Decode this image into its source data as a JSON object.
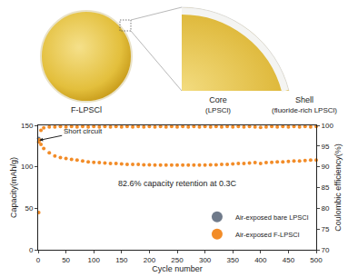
{
  "diagram": {
    "particle": {
      "label": "F-LPSCl"
    },
    "core": {
      "label": "Core",
      "sublabel": "(LPSCl)"
    },
    "shell": {
      "label": "Shell",
      "sublabel": "(fluoride-rich LPSCl)"
    }
  },
  "chart_data": {
    "type": "scatter",
    "x_label": "Cycle number",
    "y_label": "Capacity(mAh/g)",
    "y2_label": "Coulombic efficiency(%)",
    "xlim": [
      0,
      500
    ],
    "xticks": [
      0,
      50,
      100,
      150,
      200,
      250,
      300,
      350,
      400,
      450,
      500
    ],
    "ylim": [
      0,
      150
    ],
    "yticks": [
      0,
      50,
      100,
      150
    ],
    "y2lim": [
      70,
      100
    ],
    "y2ticks": [
      70,
      75,
      80,
      85,
      90,
      95,
      100
    ],
    "legend": "lower right",
    "marker": "circle",
    "annotations": [
      {
        "text": "Short circuit",
        "x": 2,
        "y": 132,
        "arrow": true
      },
      {
        "text": "82.6% capacity retention at 0.3C",
        "x": 250,
        "y": 80,
        "arrow": false
      }
    ],
    "series": [
      {
        "name": "Air-exposed bare LPSCl",
        "color": "#6f7a8a",
        "axis": "y",
        "x": [
          1
        ],
        "values": [
          134
        ]
      },
      {
        "name": "Air-exposed F-LPSCl",
        "color": "#f28c28",
        "axis": "y",
        "x": [
          1,
          2,
          5,
          10,
          20,
          30,
          40,
          50,
          60,
          70,
          80,
          90,
          100,
          110,
          120,
          130,
          140,
          150,
          160,
          170,
          180,
          190,
          200,
          210,
          220,
          230,
          240,
          250,
          260,
          270,
          280,
          290,
          300,
          310,
          320,
          330,
          340,
          350,
          360,
          370,
          380,
          390,
          400,
          410,
          420,
          430,
          440,
          450,
          460,
          470,
          480,
          490,
          500
        ],
        "values": [
          130,
          132,
          127,
          122,
          117,
          113,
          111,
          110,
          109,
          108,
          107,
          106,
          105.5,
          105,
          104.5,
          104,
          104,
          103.5,
          103,
          103,
          103,
          102.5,
          102.5,
          102,
          102,
          102,
          102,
          102,
          102,
          102,
          102,
          102,
          102,
          102.5,
          102.5,
          103,
          103,
          103.5,
          104,
          104,
          104.5,
          105,
          104,
          105,
          105.5,
          106,
          106,
          106.5,
          107,
          107,
          107.5,
          108,
          108
        ]
      },
      {
        "name": "Air-exposed F-LPSCl",
        "color": "#f28c28",
        "axis": "y2",
        "x": [
          1,
          2,
          5,
          10,
          20,
          30,
          40,
          50,
          60,
          70,
          80,
          90,
          100,
          110,
          120,
          130,
          140,
          150,
          160,
          170,
          180,
          190,
          200,
          210,
          220,
          230,
          240,
          250,
          260,
          270,
          280,
          290,
          300,
          310,
          320,
          330,
          340,
          350,
          360,
          370,
          380,
          390,
          400,
          410,
          420,
          430,
          440,
          450,
          460,
          470,
          480,
          490,
          500
        ],
        "values": [
          79,
          96.5,
          98.8,
          99.4,
          99.6,
          99.6,
          99.7,
          99.6,
          99.7,
          99.6,
          99.7,
          99.6,
          99.7,
          99.6,
          99.7,
          99.6,
          99.7,
          99.6,
          99.7,
          99.6,
          99.7,
          99.6,
          99.7,
          99.6,
          99.7,
          99.6,
          99.7,
          99.6,
          99.7,
          99.6,
          99.7,
          99.6,
          99.7,
          99.6,
          99.7,
          99.6,
          99.7,
          99.6,
          99.7,
          99.6,
          99.7,
          99.6,
          99.5,
          99.6,
          99.7,
          99.6,
          99.7,
          99.6,
          99.7,
          99.6,
          99.7,
          99.6,
          99.7
        ]
      }
    ]
  }
}
